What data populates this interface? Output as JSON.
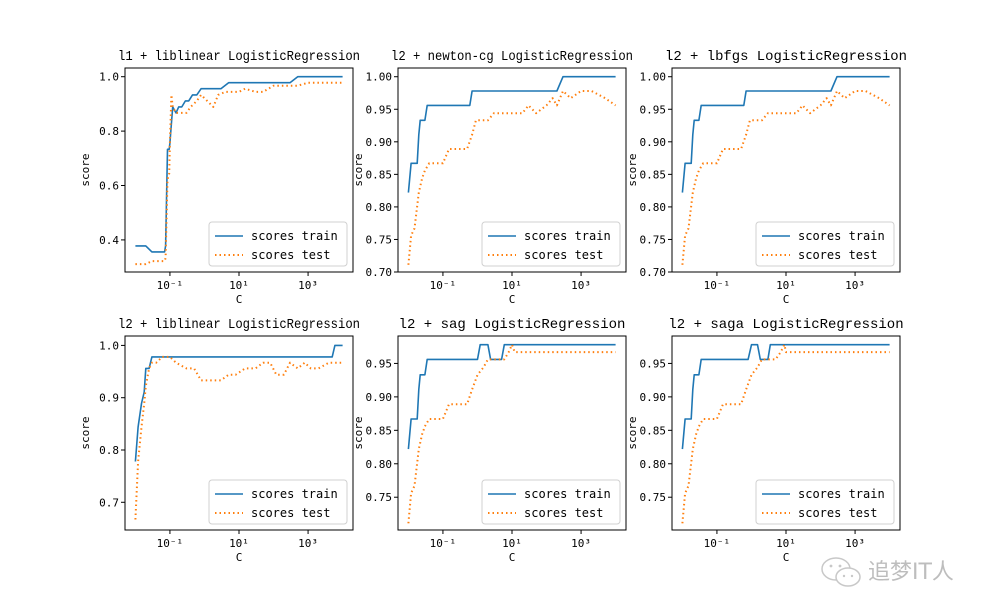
{
  "figure": {
    "watermark": "追梦IT人",
    "colors": {
      "train": "#1f77b4",
      "test": "#ff7f0e"
    }
  },
  "chart_data": [
    {
      "type": "line",
      "title": "l1 + liblinear LogisticRegression",
      "xlabel": "C",
      "ylabel": "score",
      "xscale": "log",
      "xlim": [
        0.005,
        20000
      ],
      "ylim": [
        0.282,
        1.032
      ],
      "xticks": [
        {
          "value": 0.1,
          "label": "10⁻¹"
        },
        {
          "value": 10,
          "label": "10¹"
        },
        {
          "value": 1000,
          "label": "10³"
        }
      ],
      "yticks": [
        {
          "value": 0.4,
          "label": "0.4"
        },
        {
          "value": 0.6,
          "label": "0.6"
        },
        {
          "value": 0.8,
          "label": "0.8"
        },
        {
          "value": 1.0,
          "label": "1.0"
        }
      ],
      "legend": {
        "position": "lower-right",
        "entries": [
          "scores train",
          "scores test"
        ]
      },
      "series": [
        {
          "name": "scores train",
          "style": "solid",
          "x": [
            0.01,
            0.015,
            0.02,
            0.03,
            0.05,
            0.07,
            0.075,
            0.085,
            0.095,
            0.1,
            0.12,
            0.15,
            0.18,
            0.22,
            0.28,
            0.35,
            0.45,
            0.6,
            0.8,
            1.2,
            2,
            3,
            5,
            10,
            30,
            100,
            200,
            300,
            500,
            1000,
            2000,
            5000,
            10000
          ],
          "y": [
            0.378,
            0.378,
            0.378,
            0.356,
            0.356,
            0.356,
            0.378,
            0.733,
            0.733,
            0.756,
            0.889,
            0.867,
            0.889,
            0.889,
            0.911,
            0.911,
            0.933,
            0.933,
            0.956,
            0.956,
            0.956,
            0.956,
            0.978,
            0.978,
            0.978,
            0.978,
            0.978,
            0.978,
            1.0,
            1.0,
            1.0,
            1.0,
            1.0
          ]
        },
        {
          "name": "scores test",
          "style": "dotted",
          "x": [
            0.01,
            0.015,
            0.02,
            0.03,
            0.05,
            0.07,
            0.075,
            0.085,
            0.095,
            0.1,
            0.11,
            0.12,
            0.15,
            0.2,
            0.3,
            0.4,
            0.6,
            0.8,
            1.2,
            1.8,
            2.5,
            4,
            6,
            10,
            15,
            30,
            50,
            100,
            200,
            500,
            1000,
            3000,
            10000
          ],
          "y": [
            0.311,
            0.311,
            0.311,
            0.322,
            0.322,
            0.322,
            0.333,
            0.622,
            0.644,
            0.756,
            0.933,
            0.889,
            0.867,
            0.867,
            0.867,
            0.889,
            0.911,
            0.933,
            0.911,
            0.889,
            0.933,
            0.944,
            0.944,
            0.944,
            0.956,
            0.944,
            0.944,
            0.967,
            0.967,
            0.967,
            0.978,
            0.978,
            0.978
          ]
        }
      ]
    },
    {
      "type": "line",
      "title": "l2 + newton-cg LogisticRegression",
      "xlabel": "C",
      "ylabel": "score",
      "xscale": "log",
      "xlim": [
        0.005,
        20000
      ],
      "ylim": [
        0.7,
        1.0134
      ],
      "xticks": [
        {
          "value": 0.1,
          "label": "10⁻¹"
        },
        {
          "value": 10,
          "label": "10¹"
        },
        {
          "value": 1000,
          "label": "10³"
        }
      ],
      "yticks": [
        {
          "value": 0.7,
          "label": "0.70"
        },
        {
          "value": 0.75,
          "label": "0.75"
        },
        {
          "value": 0.8,
          "label": "0.80"
        },
        {
          "value": 0.85,
          "label": "0.85"
        },
        {
          "value": 0.9,
          "label": "0.90"
        },
        {
          "value": 0.95,
          "label": "0.95"
        },
        {
          "value": 1.0,
          "label": "1.00"
        }
      ],
      "legend": {
        "position": "lower-right",
        "entries": [
          "scores train",
          "scores test"
        ]
      },
      "series": [
        {
          "name": "scores train",
          "style": "solid",
          "x": [
            0.01,
            0.012,
            0.015,
            0.018,
            0.02,
            0.022,
            0.025,
            0.03,
            0.035,
            0.04,
            0.6,
            0.7,
            5,
            10,
            50,
            100,
            200,
            300,
            1000,
            10000
          ],
          "y": [
            0.822,
            0.867,
            0.867,
            0.867,
            0.911,
            0.933,
            0.933,
            0.933,
            0.956,
            0.956,
            0.956,
            0.978,
            0.978,
            0.978,
            0.978,
            0.978,
            0.978,
            1.0,
            1.0,
            1.0
          ]
        },
        {
          "name": "scores test",
          "style": "dotted",
          "x": [
            0.01,
            0.012,
            0.015,
            0.02,
            0.025,
            0.03,
            0.04,
            0.05,
            0.1,
            0.15,
            0.3,
            0.5,
            0.7,
            0.9,
            2,
            3,
            10,
            20,
            30,
            50,
            100,
            150,
            200,
            300,
            500,
            1000,
            2000,
            5000,
            10000
          ],
          "y": [
            0.711,
            0.756,
            0.767,
            0.822,
            0.844,
            0.856,
            0.867,
            0.867,
            0.867,
            0.889,
            0.889,
            0.889,
            0.911,
            0.933,
            0.933,
            0.944,
            0.944,
            0.944,
            0.956,
            0.944,
            0.956,
            0.967,
            0.956,
            0.978,
            0.967,
            0.978,
            0.978,
            0.967,
            0.956
          ]
        }
      ]
    },
    {
      "type": "line",
      "title": "l2 + lbfgs LogisticRegression",
      "xlabel": "C",
      "ylabel": "score",
      "xscale": "log",
      "xlim": [
        0.005,
        20000
      ],
      "ylim": [
        0.7,
        1.0134
      ],
      "xticks": [
        {
          "value": 0.1,
          "label": "10⁻¹"
        },
        {
          "value": 10,
          "label": "10¹"
        },
        {
          "value": 1000,
          "label": "10³"
        }
      ],
      "yticks": [
        {
          "value": 0.7,
          "label": "0.70"
        },
        {
          "value": 0.75,
          "label": "0.75"
        },
        {
          "value": 0.8,
          "label": "0.80"
        },
        {
          "value": 0.85,
          "label": "0.85"
        },
        {
          "value": 0.9,
          "label": "0.90"
        },
        {
          "value": 0.95,
          "label": "0.95"
        },
        {
          "value": 1.0,
          "label": "1.00"
        }
      ],
      "legend": {
        "position": "lower-right",
        "entries": [
          "scores train",
          "scores test"
        ]
      },
      "series": [
        {
          "name": "scores train",
          "style": "solid",
          "x": [
            0.01,
            0.012,
            0.015,
            0.018,
            0.02,
            0.022,
            0.025,
            0.03,
            0.035,
            0.04,
            0.6,
            0.7,
            5,
            10,
            50,
            100,
            200,
            300,
            1000,
            10000
          ],
          "y": [
            0.822,
            0.867,
            0.867,
            0.867,
            0.911,
            0.933,
            0.933,
            0.933,
            0.956,
            0.956,
            0.956,
            0.978,
            0.978,
            0.978,
            0.978,
            0.978,
            0.978,
            1.0,
            1.0,
            1.0
          ]
        },
        {
          "name": "scores test",
          "style": "dotted",
          "x": [
            0.01,
            0.012,
            0.015,
            0.02,
            0.025,
            0.03,
            0.04,
            0.05,
            0.1,
            0.15,
            0.3,
            0.5,
            0.7,
            0.9,
            2,
            3,
            10,
            20,
            30,
            50,
            100,
            150,
            200,
            300,
            500,
            1000,
            2000,
            5000,
            10000
          ],
          "y": [
            0.711,
            0.756,
            0.767,
            0.822,
            0.844,
            0.856,
            0.867,
            0.867,
            0.867,
            0.889,
            0.889,
            0.889,
            0.911,
            0.933,
            0.933,
            0.944,
            0.944,
            0.944,
            0.956,
            0.944,
            0.956,
            0.967,
            0.956,
            0.978,
            0.967,
            0.978,
            0.978,
            0.967,
            0.956
          ]
        }
      ]
    },
    {
      "type": "line",
      "title": "l2 + liblinear LogisticRegression",
      "xlabel": "C",
      "ylabel": "score",
      "xscale": "log",
      "xlim": [
        0.005,
        20000
      ],
      "ylim": [
        0.647,
        1.018
      ],
      "xticks": [
        {
          "value": 0.1,
          "label": "10⁻¹"
        },
        {
          "value": 10,
          "label": "10¹"
        },
        {
          "value": 1000,
          "label": "10³"
        }
      ],
      "yticks": [
        {
          "value": 0.7,
          "label": "0.7"
        },
        {
          "value": 0.8,
          "label": "0.8"
        },
        {
          "value": 0.9,
          "label": "0.9"
        },
        {
          "value": 1.0,
          "label": "1.0"
        }
      ],
      "legend": {
        "position": "lower-right",
        "entries": [
          "scores train",
          "scores test"
        ]
      },
      "series": [
        {
          "name": "scores train",
          "style": "solid",
          "x": [
            0.01,
            0.012,
            0.015,
            0.018,
            0.02,
            0.022,
            0.025,
            0.03,
            5000,
            6000,
            10000
          ],
          "y": [
            0.778,
            0.844,
            0.889,
            0.911,
            0.956,
            0.956,
            0.956,
            0.978,
            0.978,
            1.0,
            1.0
          ]
        },
        {
          "name": "scores test",
          "style": "dotted",
          "x": [
            0.01,
            0.012,
            0.015,
            0.018,
            0.02,
            0.025,
            0.03,
            0.04,
            0.06,
            0.1,
            0.15,
            0.3,
            0.5,
            0.8,
            1.5,
            3,
            5,
            8,
            15,
            30,
            50,
            80,
            120,
            200,
            300,
            500,
            800,
            1200,
            2000,
            4000,
            10000
          ],
          "y": [
            0.667,
            0.778,
            0.844,
            0.889,
            0.922,
            0.956,
            0.967,
            0.967,
            0.978,
            0.978,
            0.967,
            0.956,
            0.956,
            0.933,
            0.933,
            0.933,
            0.944,
            0.944,
            0.956,
            0.956,
            0.967,
            0.967,
            0.944,
            0.944,
            0.967,
            0.956,
            0.967,
            0.956,
            0.956,
            0.967,
            0.967
          ]
        }
      ]
    },
    {
      "type": "line",
      "title": "l2 + sag LogisticRegression",
      "xlabel": "C",
      "ylabel": "score",
      "xscale": "log",
      "xlim": [
        0.005,
        20000
      ],
      "ylim": [
        0.701,
        0.991
      ],
      "xticks": [
        {
          "value": 0.1,
          "label": "10⁻¹"
        },
        {
          "value": 10,
          "label": "10¹"
        },
        {
          "value": 1000,
          "label": "10³"
        }
      ],
      "yticks": [
        {
          "value": 0.75,
          "label": "0.75"
        },
        {
          "value": 0.8,
          "label": "0.80"
        },
        {
          "value": 0.85,
          "label": "0.85"
        },
        {
          "value": 0.9,
          "label": "0.90"
        },
        {
          "value": 0.95,
          "label": "0.95"
        }
      ],
      "legend": {
        "position": "lower-right",
        "entries": [
          "scores train",
          "scores test"
        ]
      },
      "series": [
        {
          "name": "scores train",
          "style": "solid",
          "x": [
            0.01,
            0.012,
            0.015,
            0.018,
            0.02,
            0.022,
            0.025,
            0.03,
            0.035,
            0.04,
            1.0,
            1.2,
            2.0,
            2.4,
            5,
            6,
            10000
          ],
          "y": [
            0.822,
            0.867,
            0.867,
            0.867,
            0.911,
            0.933,
            0.933,
            0.933,
            0.956,
            0.956,
            0.956,
            0.978,
            0.978,
            0.956,
            0.956,
            0.978,
            0.978
          ]
        },
        {
          "name": "scores test",
          "style": "dotted",
          "x": [
            0.01,
            0.012,
            0.015,
            0.02,
            0.025,
            0.03,
            0.04,
            0.05,
            0.1,
            0.15,
            0.3,
            0.5,
            0.7,
            1.0,
            1.5,
            2.0,
            3,
            6,
            8,
            10,
            12,
            10000
          ],
          "y": [
            0.711,
            0.756,
            0.767,
            0.822,
            0.844,
            0.856,
            0.867,
            0.867,
            0.867,
            0.889,
            0.889,
            0.889,
            0.911,
            0.933,
            0.944,
            0.956,
            0.956,
            0.956,
            0.967,
            0.978,
            0.967,
            0.967
          ]
        }
      ]
    },
    {
      "type": "line",
      "title": "l2 + saga LogisticRegression",
      "xlabel": "C",
      "ylabel": "score",
      "xscale": "log",
      "xlim": [
        0.005,
        20000
      ],
      "ylim": [
        0.701,
        0.991
      ],
      "xticks": [
        {
          "value": 0.1,
          "label": "10⁻¹"
        },
        {
          "value": 10,
          "label": "10¹"
        },
        {
          "value": 1000,
          "label": "10³"
        }
      ],
      "yticks": [
        {
          "value": 0.75,
          "label": "0.75"
        },
        {
          "value": 0.8,
          "label": "0.80"
        },
        {
          "value": 0.85,
          "label": "0.85"
        },
        {
          "value": 0.9,
          "label": "0.90"
        },
        {
          "value": 0.95,
          "label": "0.95"
        }
      ],
      "legend": {
        "position": "lower-right",
        "entries": [
          "scores train",
          "scores test"
        ]
      },
      "series": [
        {
          "name": "scores train",
          "style": "solid",
          "x": [
            0.01,
            0.012,
            0.015,
            0.018,
            0.02,
            0.022,
            0.025,
            0.03,
            0.035,
            0.04,
            0.8,
            1.0,
            1.5,
            1.8,
            3.0,
            3.5,
            10000
          ],
          "y": [
            0.822,
            0.867,
            0.867,
            0.867,
            0.911,
            0.933,
            0.933,
            0.933,
            0.956,
            0.956,
            0.956,
            0.978,
            0.978,
            0.956,
            0.956,
            0.978,
            0.978
          ]
        },
        {
          "name": "scores test",
          "style": "dotted",
          "x": [
            0.01,
            0.012,
            0.015,
            0.02,
            0.025,
            0.03,
            0.04,
            0.05,
            0.1,
            0.15,
            0.3,
            0.5,
            0.7,
            1.0,
            1.5,
            2.0,
            3,
            5,
            7,
            9,
            10,
            10000
          ],
          "y": [
            0.711,
            0.756,
            0.767,
            0.822,
            0.844,
            0.856,
            0.867,
            0.867,
            0.867,
            0.889,
            0.889,
            0.889,
            0.911,
            0.933,
            0.944,
            0.956,
            0.956,
            0.956,
            0.967,
            0.978,
            0.967,
            0.967
          ]
        }
      ]
    }
  ]
}
